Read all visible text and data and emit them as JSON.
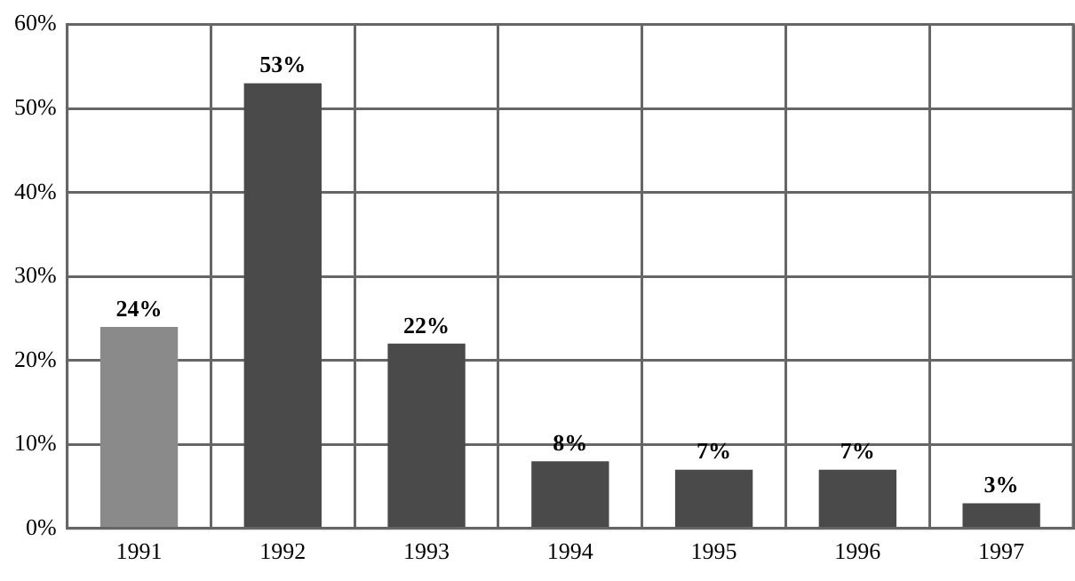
{
  "chart_data": {
    "type": "bar",
    "categories": [
      "1991",
      "1992",
      "1993",
      "1994",
      "1995",
      "1996",
      "1997"
    ],
    "values": [
      24,
      53,
      22,
      8,
      7,
      7,
      3
    ],
    "colors": [
      "#8a8a8a",
      "#4a4a4a",
      "#4a4a4a",
      "#4a4a4a",
      "#4a4a4a",
      "#4a4a4a",
      "#4a4a4a"
    ],
    "value_labels": [
      "24%",
      "53%",
      "22%",
      "8%",
      "7%",
      "7%",
      "3%"
    ],
    "ylim": [
      0,
      60
    ],
    "yticks": [
      {
        "value": 0,
        "label": "0%"
      },
      {
        "value": 10,
        "label": "10%"
      },
      {
        "value": 20,
        "label": "20%"
      },
      {
        "value": 30,
        "label": "30%"
      },
      {
        "value": 40,
        "label": "40%"
      },
      {
        "value": 50,
        "label": "50%"
      },
      {
        "value": 60,
        "label": "60%"
      }
    ],
    "grid": true,
    "legend": false
  }
}
